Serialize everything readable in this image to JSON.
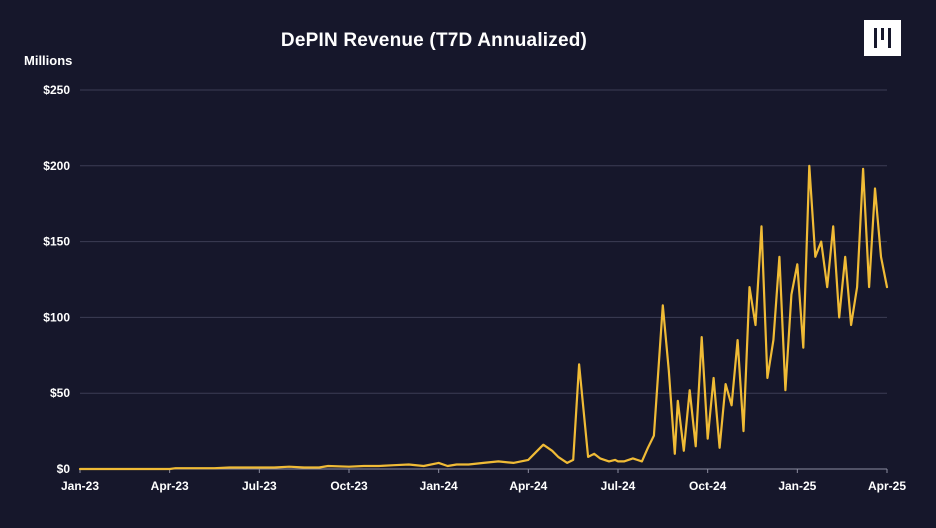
{
  "chart_data": {
    "type": "line",
    "title": "DePIN Revenue (T7D Annualized)",
    "ylabel": "Millions",
    "xlabel": "",
    "ylim": [
      0,
      250
    ],
    "yticks": [
      0,
      50,
      100,
      150,
      200,
      250
    ],
    "ytick_labels": [
      "$0",
      "$50",
      "$100",
      "$150",
      "$200",
      "$250"
    ],
    "xtick_labels": [
      "Jan-23",
      "Apr-23",
      "Jul-23",
      "Oct-23",
      "Jan-24",
      "Apr-24",
      "Jul-24",
      "Oct-24",
      "Jan-25",
      "Apr-25"
    ],
    "x_range_months": [
      0,
      27
    ],
    "grid": true,
    "series": [
      {
        "name": "DePIN Revenue (T7D Annualized)",
        "color": "#f0bb36",
        "x": [
          0,
          1,
          2,
          3,
          3.2,
          4,
          4.5,
          5,
          6,
          6.5,
          7,
          7.5,
          8,
          8.3,
          9,
          9.5,
          10,
          10.5,
          11,
          11.5,
          12,
          12.3,
          12.6,
          13,
          13.5,
          14,
          14.5,
          15,
          15.2,
          15.5,
          15.8,
          16,
          16.3,
          16.5,
          16.7,
          17,
          17.2,
          17.4,
          17.7,
          17.9,
          18,
          18.2,
          18.5,
          18.8,
          19,
          19.2,
          19.5,
          19.7,
          19.9,
          20,
          20.2,
          20.4,
          20.6,
          20.8,
          21,
          21.2,
          21.4,
          21.6,
          21.8,
          22,
          22.2,
          22.4,
          22.6,
          22.8,
          23,
          23.2,
          23.4,
          23.6,
          23.8,
          24,
          24.2,
          24.4,
          24.6,
          24.8,
          25,
          25.2,
          25.4,
          25.6,
          25.8,
          26,
          26.2,
          26.4,
          26.6,
          26.8,
          27
        ],
        "values": [
          0,
          0,
          0,
          0,
          0.5,
          0.5,
          0.5,
          1,
          1,
          1,
          1.5,
          1,
          1,
          2,
          1.5,
          2,
          2,
          2.5,
          3,
          2,
          4,
          2,
          3,
          3,
          4,
          5,
          4,
          6,
          10,
          16,
          12,
          8,
          4,
          6,
          69,
          8,
          10,
          7,
          5,
          6,
          5,
          5,
          7,
          5,
          14,
          22,
          108,
          65,
          10,
          45,
          12,
          52,
          15,
          87,
          20,
          60,
          14,
          56,
          42,
          85,
          25,
          120,
          95,
          160,
          60,
          85,
          140,
          52,
          115,
          135,
          80,
          200,
          140,
          150,
          120,
          160,
          100,
          140,
          95,
          120,
          198,
          120,
          185,
          140,
          120
        ]
      }
    ]
  }
}
